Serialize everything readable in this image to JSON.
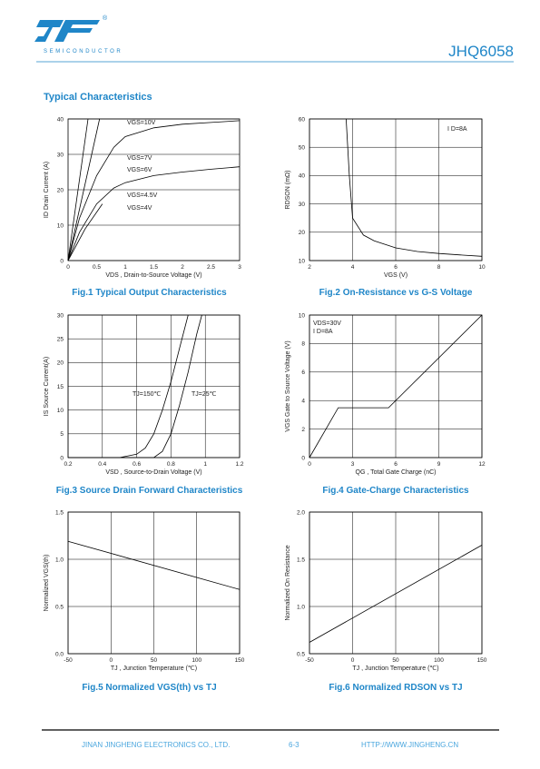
{
  "header": {
    "mark": "®",
    "company": "SEMICONDUCTOR",
    "part": "JHQ6058"
  },
  "section_title": "Typical Characteristics",
  "chart_data": [
    {
      "type": "line",
      "title": "Fig.1 Typical Output Characteristics",
      "x_label": "VDS , Drain-to-Source  Voltage (V)",
      "y_label": "ID Drain Current  (A)",
      "xlim": [
        0,
        3
      ],
      "ylim": [
        0,
        40
      ],
      "xticks": [
        0,
        0.5,
        1,
        1.5,
        2,
        2.5,
        3
      ],
      "yticks": [
        0,
        10,
        20,
        30,
        40
      ],
      "grid": "y",
      "series": [
        {
          "name": "VGS=10V",
          "color": "#000000",
          "x": [
            0,
            0.35
          ],
          "values": [
            0,
            40
          ]
        },
        {
          "name": "VGS=7V",
          "color": "#000000",
          "x": [
            0,
            0.55
          ],
          "values": [
            0,
            40
          ]
        },
        {
          "name": "VGS=6V",
          "color": "#000000",
          "x": [
            0,
            0.2,
            0.5,
            0.8,
            1,
            1.5,
            2,
            2.5,
            3
          ],
          "values": [
            0,
            12,
            24,
            32,
            35,
            37.5,
            38.5,
            39,
            39.5
          ]
        },
        {
          "name": "VGS=4.5V",
          "color": "#000000",
          "x": [
            0,
            0.2,
            0.5,
            0.8,
            1,
            1.5,
            2,
            2.5,
            3
          ],
          "values": [
            0,
            8,
            16,
            20.5,
            22,
            24,
            25,
            25.8,
            26.5
          ]
        },
        {
          "name": "VGS=4V",
          "color": "#000000",
          "x": [
            0,
            0.3,
            0.6
          ],
          "values": [
            0,
            9,
            16
          ]
        }
      ]
    },
    {
      "type": "line",
      "title": "Fig.2 On-Resistance vs G-S Voltage",
      "x_label": "VGS (V)",
      "y_label": "RDSON (mΩ)",
      "xlim": [
        2,
        10
      ],
      "ylim": [
        10,
        60
      ],
      "xticks": [
        2,
        4,
        6,
        8,
        10
      ],
      "yticks": [
        10,
        20,
        30,
        40,
        50,
        60
      ],
      "grid": "both",
      "annotations": [
        "I D=8A"
      ],
      "series": [
        {
          "name": "RDSON",
          "color": "#000000",
          "x": [
            3.7,
            3.85,
            4,
            4.5,
            5,
            6,
            7,
            8,
            9,
            10
          ],
          "values": [
            60,
            40,
            25,
            19,
            17,
            14.5,
            13.2,
            12.5,
            12,
            11.5
          ]
        }
      ]
    },
    {
      "type": "line",
      "title": "Fig.3 Source Drain Forward Characteristics",
      "x_label": "VSD , Source-to-Drain Voltage (V)",
      "y_label": "IS  Source Current(A)",
      "xlim": [
        0.2,
        1.2
      ],
      "ylim": [
        0,
        30
      ],
      "xticks": [
        0.2,
        0.4,
        0.6,
        0.8,
        1,
        1.2
      ],
      "yticks": [
        0,
        5,
        10,
        15,
        20,
        25,
        30
      ],
      "grid": "both",
      "series": [
        {
          "name": "TJ=150℃",
          "color": "#000000",
          "x": [
            0.2,
            0.5,
            0.6,
            0.65,
            0.7,
            0.75,
            0.8,
            0.85,
            0.9
          ],
          "values": [
            0,
            0,
            0.7,
            2,
            5,
            10,
            16,
            23,
            30
          ]
        },
        {
          "name": "TJ=25℃",
          "color": "#000000",
          "x": [
            0.2,
            0.7,
            0.75,
            0.8,
            0.85,
            0.9,
            0.95,
            0.98
          ],
          "values": [
            0,
            0,
            1.3,
            5,
            11,
            18,
            26,
            30
          ]
        }
      ]
    },
    {
      "type": "line",
      "title": "Fig.4 Gate-Charge Characteristics",
      "x_label": "QG , Total Gate Charge (nC)",
      "y_label": "VGS  Gate to Source Voltage (V)",
      "xlim": [
        0,
        12
      ],
      "ylim": [
        0,
        10
      ],
      "xticks": [
        0,
        3,
        6,
        9,
        12
      ],
      "yticks": [
        0,
        2,
        4,
        6,
        8,
        10
      ],
      "grid": "both",
      "annotations": [
        "VDS=30V",
        "I D=8A"
      ],
      "series": [
        {
          "name": "VGS",
          "color": "#000000",
          "x": [
            0,
            2,
            5.5,
            12
          ],
          "values": [
            0,
            3.5,
            3.5,
            10
          ]
        }
      ]
    },
    {
      "type": "line",
      "title": "Fig.5 Normalized VGS(th) vs TJ",
      "x_label": "TJ , Junction Temperature (℃)",
      "y_label": "Normalized VGS(th)",
      "xlim": [
        -50,
        150
      ],
      "ylim": [
        0,
        1.5
      ],
      "xticks": [
        -50,
        0,
        50,
        100,
        150
      ],
      "yticks": [
        {
          "value": 0,
          "label": "0.0"
        },
        0.5,
        {
          "value": 1,
          "label": "1.0"
        },
        1.5
      ],
      "grid": "both",
      "series": [
        {
          "name": "VGS(th)",
          "color": "#000000",
          "x": [
            -50,
            150
          ],
          "values": [
            1.19,
            0.68
          ]
        }
      ]
    },
    {
      "type": "line",
      "title": "Fig.6 Normalized RDSON vs TJ",
      "x_label": "TJ , Junction Temperature (℃)",
      "y_label": "Normalized On Resistance",
      "xlim": [
        -50,
        150
      ],
      "ylim": [
        0.5,
        2
      ],
      "xticks": [
        -50,
        0,
        50,
        100,
        150
      ],
      "yticks": [
        0.5,
        {
          "value": 1,
          "label": "1.0"
        },
        1.5,
        {
          "value": 2,
          "label": "2.0"
        }
      ],
      "grid": "both",
      "series": [
        {
          "name": "RDSON",
          "color": "#000000",
          "x": [
            -50,
            150
          ],
          "values": [
            0.62,
            1.65
          ]
        }
      ]
    }
  ],
  "footer": {
    "company": "JINAN JINGHENG ELECTRONICS CO., LTD.",
    "page": "6-3",
    "url": "HTTP://WWW.JINGHENG.CN"
  }
}
